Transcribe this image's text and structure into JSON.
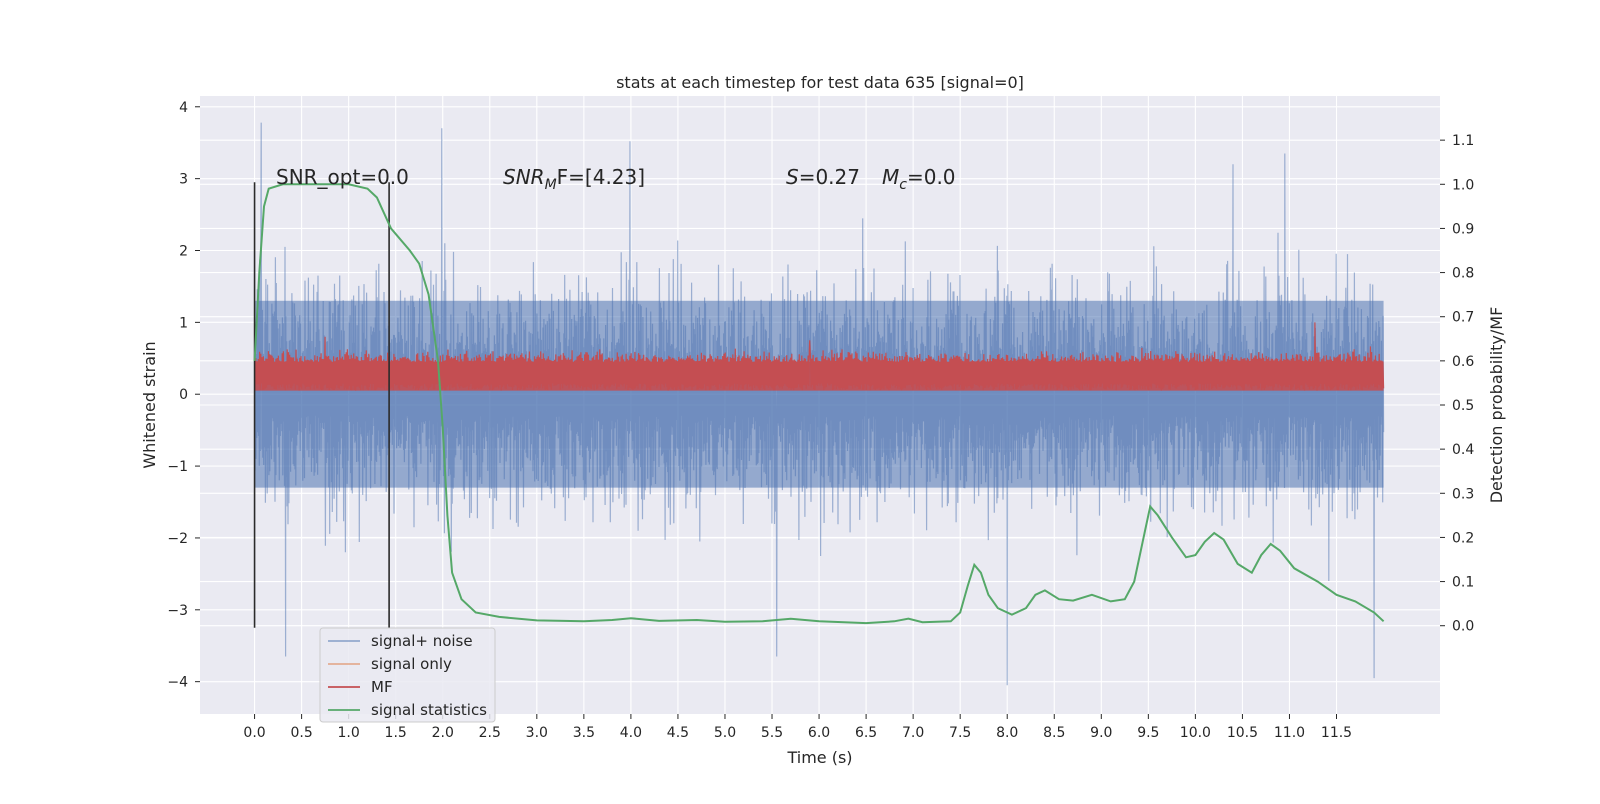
{
  "chart_data": {
    "type": "line",
    "title": "stats at each timestep for test data 635 [signal=0]",
    "xlabel": "Time (s)",
    "ylabel": "Whitened strain",
    "ylabel_right": "Detection probability/MF",
    "xlim": [
      -0.58,
      12.6
    ],
    "ylim": [
      -4.45,
      4.15
    ],
    "ylim_right": [
      -0.2,
      1.2
    ],
    "x_ticks": [
      "0.0",
      "0.5",
      "1.0",
      "1.5",
      "2.0",
      "2.5",
      "3.0",
      "3.5",
      "4.0",
      "4.5",
      "5.0",
      "5.5",
      "6.0",
      "6.5",
      "7.0",
      "7.5",
      "8.0",
      "8.5",
      "9.0",
      "9.5",
      "10.0",
      "10.5",
      "11.0",
      "11.5"
    ],
    "y_ticks_left": [
      "−4",
      "−3",
      "−2",
      "−1",
      "0",
      "1",
      "2",
      "3",
      "4"
    ],
    "y_ticks_right": [
      "0.0",
      "0.1",
      "0.2",
      "0.3",
      "0.4",
      "0.5",
      "0.6",
      "0.7",
      "0.8",
      "0.9",
      "1.0",
      "1.1"
    ],
    "grid": true,
    "legend_position": "lower-left",
    "annotations": {
      "snr_opt": "SNR_opt=0.0",
      "snr_mf_base": "SNR",
      "snr_mf_sub": "M",
      "snr_mf_rest": "F=[4.23]",
      "s_label": "S",
      "s_value": "=0.27",
      "mc_base": "M",
      "mc_sub": "c",
      "mc_value": "=0.0"
    },
    "vertical_markers": [
      0.0,
      1.43
    ],
    "series": [
      {
        "name": "signal+ noise",
        "color": "#4c72b0",
        "axis": "left",
        "style": "dense noise trace",
        "x_range": [
          0.0,
          12.0
        ],
        "envelope_core": [
          -1.3,
          1.3
        ],
        "peaks": [
          [
            0.07,
            3.78
          ],
          [
            1.99,
            3.7
          ],
          [
            3.99,
            3.52
          ],
          [
            10.95,
            3.35
          ],
          [
            10.4,
            3.2
          ],
          [
            8.0,
            -4.05
          ],
          [
            11.9,
            -3.95
          ],
          [
            0.33,
            -3.65
          ],
          [
            5.55,
            -3.65
          ]
        ]
      },
      {
        "name": "signal only",
        "color": "#dd8452",
        "axis": "left",
        "values": []
      },
      {
        "name": "MF",
        "color": "#c44e52",
        "axis": "left",
        "style": "dense band",
        "x_range": [
          0.0,
          12.0
        ],
        "band": [
          0.05,
          0.45
        ],
        "peaks": [
          [
            11.27,
            1.0
          ],
          [
            0.75,
            0.8
          ],
          [
            5.9,
            0.75
          ]
        ]
      },
      {
        "name": "signal statistics",
        "color": "#55a868",
        "axis": "right",
        "points": [
          [
            0.0,
            0.6
          ],
          [
            0.05,
            0.8
          ],
          [
            0.1,
            0.95
          ],
          [
            0.15,
            0.99
          ],
          [
            0.3,
            1.0
          ],
          [
            1.0,
            1.0
          ],
          [
            1.2,
            0.99
          ],
          [
            1.3,
            0.97
          ],
          [
            1.45,
            0.9
          ],
          [
            1.65,
            0.85
          ],
          [
            1.75,
            0.82
          ],
          [
            1.85,
            0.75
          ],
          [
            1.95,
            0.6
          ],
          [
            2.0,
            0.45
          ],
          [
            2.05,
            0.25
          ],
          [
            2.1,
            0.12
          ],
          [
            2.2,
            0.06
          ],
          [
            2.35,
            0.03
          ],
          [
            2.6,
            0.02
          ],
          [
            3.0,
            0.012
          ],
          [
            3.5,
            0.01
          ],
          [
            3.8,
            0.013
          ],
          [
            4.0,
            0.017
          ],
          [
            4.3,
            0.011
          ],
          [
            4.7,
            0.013
          ],
          [
            5.0,
            0.009
          ],
          [
            5.4,
            0.01
          ],
          [
            5.7,
            0.016
          ],
          [
            6.0,
            0.01
          ],
          [
            6.5,
            0.006
          ],
          [
            6.8,
            0.01
          ],
          [
            6.95,
            0.016
          ],
          [
            7.1,
            0.008
          ],
          [
            7.4,
            0.01
          ],
          [
            7.5,
            0.03
          ],
          [
            7.58,
            0.09
          ],
          [
            7.65,
            0.138
          ],
          [
            7.72,
            0.12
          ],
          [
            7.8,
            0.07
          ],
          [
            7.9,
            0.04
          ],
          [
            8.05,
            0.025
          ],
          [
            8.2,
            0.04
          ],
          [
            8.3,
            0.07
          ],
          [
            8.4,
            0.08
          ],
          [
            8.55,
            0.06
          ],
          [
            8.7,
            0.057
          ],
          [
            8.9,
            0.07
          ],
          [
            9.1,
            0.055
          ],
          [
            9.25,
            0.06
          ],
          [
            9.35,
            0.1
          ],
          [
            9.45,
            0.2
          ],
          [
            9.52,
            0.27
          ],
          [
            9.6,
            0.25
          ],
          [
            9.75,
            0.2
          ],
          [
            9.9,
            0.155
          ],
          [
            10.0,
            0.16
          ],
          [
            10.1,
            0.19
          ],
          [
            10.2,
            0.21
          ],
          [
            10.3,
            0.195
          ],
          [
            10.45,
            0.14
          ],
          [
            10.6,
            0.12
          ],
          [
            10.7,
            0.16
          ],
          [
            10.8,
            0.185
          ],
          [
            10.9,
            0.17
          ],
          [
            11.05,
            0.13
          ],
          [
            11.3,
            0.1
          ],
          [
            11.5,
            0.07
          ],
          [
            11.7,
            0.055
          ],
          [
            11.9,
            0.03
          ],
          [
            12.0,
            0.01
          ]
        ]
      }
    ]
  }
}
